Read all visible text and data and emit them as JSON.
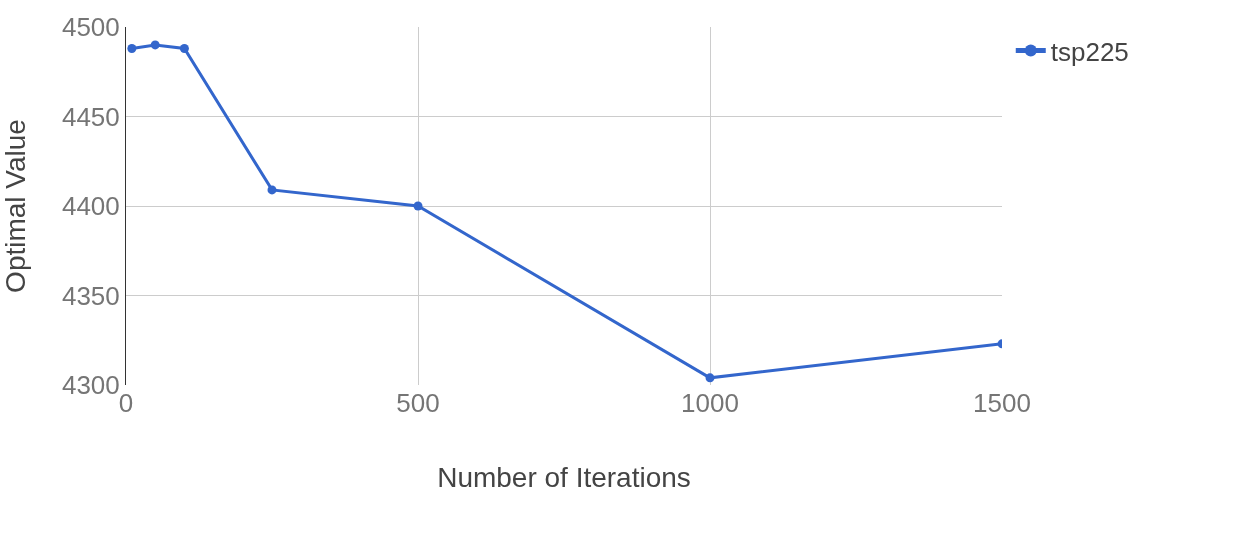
{
  "chart_data": {
    "type": "line",
    "xlabel": "Number of Iterations",
    "ylabel": "Optimal Value",
    "x": [
      10,
      50,
      100,
      250,
      500,
      1000,
      1500
    ],
    "series": [
      {
        "name": "tsp225",
        "color": "#3366cc",
        "values": [
          4488,
          4490,
          4488,
          4409,
          4400,
          4304,
          4323
        ]
      }
    ],
    "xlim": [
      0,
      1500
    ],
    "xticks": [
      0,
      500,
      1000,
      1500
    ],
    "ylim": [
      4300,
      4500
    ],
    "yticks": [
      4300,
      4350,
      4400,
      4450,
      4500
    ],
    "grid": true,
    "legend": "top right",
    "marker": "circle",
    "line_style": "solid"
  }
}
